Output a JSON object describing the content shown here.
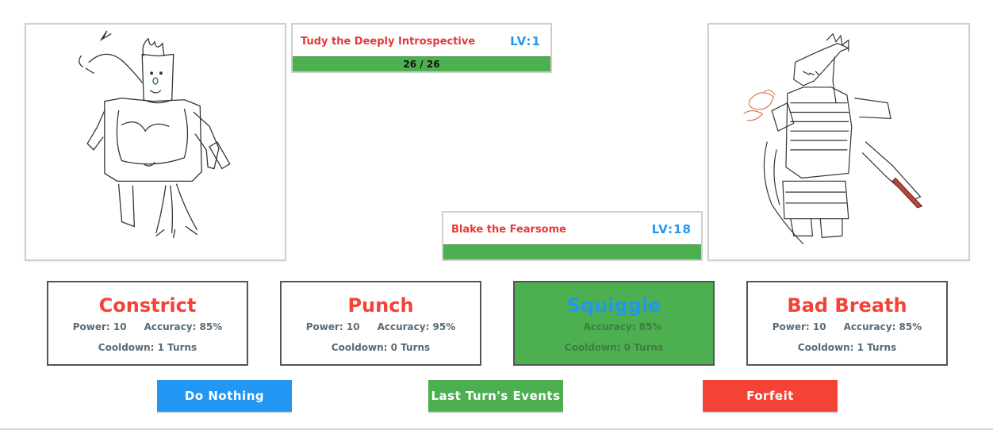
{
  "player": {
    "name": "Tudy the Deeply Introspective",
    "level": "LV:1",
    "hp_text": "26 / 26",
    "hp_fraction": 1.0
  },
  "enemy": {
    "name": "Blake the Fearsome",
    "level": "LV:18",
    "hp_fraction": 1.0
  },
  "moves": [
    {
      "name": "Constrict",
      "power": "Power: 10",
      "accuracy": "Accuracy: 85%",
      "cooldown": "Cooldown: 1 Turns"
    },
    {
      "name": "Punch",
      "power": "Power: 10",
      "accuracy": "Accuracy: 95%",
      "cooldown": "Cooldown: 0 Turns"
    },
    {
      "name": "Squiggle",
      "power": "",
      "accuracy": "Accuracy: 85%",
      "cooldown": "Cooldown: 0 Turns"
    },
    {
      "name": "Bad Breath",
      "power": "Power: 10",
      "accuracy": "Accuracy: 85%",
      "cooldown": "Cooldown: 1 Turns"
    }
  ],
  "selected_move": "Squiggle",
  "actions": {
    "do_nothing": "Do Nothing",
    "last_turn": "Last Turn's Events",
    "forfeit": "Forfeit"
  },
  "colors": {
    "name_red": "#e53935",
    "level_blue": "#2196f3",
    "hp_green": "#4caf50",
    "forfeit_red": "#f44336"
  }
}
